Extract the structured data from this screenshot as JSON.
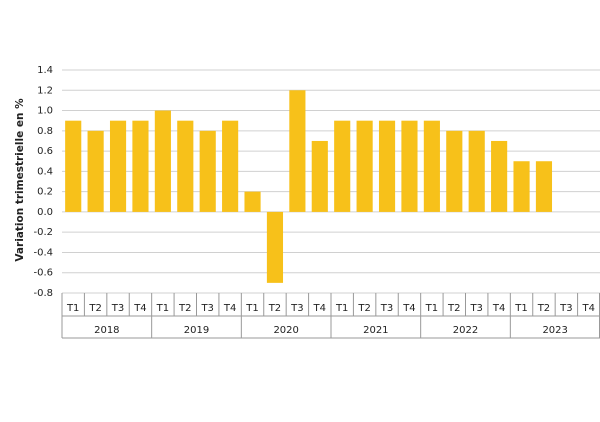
{
  "chart_data": {
    "type": "bar",
    "y_label": "Variation trimestrielle en %",
    "categories": [
      "T1",
      "T2",
      "T3",
      "T4",
      "T1",
      "T2",
      "T3",
      "T4",
      "T1",
      "T2",
      "T3",
      "T4",
      "T1",
      "T2",
      "T3",
      "T4",
      "T1",
      "T2",
      "T3",
      "T4",
      "T1",
      "T2",
      "T3",
      "T4"
    ],
    "groups": [
      "2018",
      "2019",
      "2020",
      "2021",
      "2022",
      "2023"
    ],
    "values": [
      0.9,
      0.8,
      0.9,
      0.9,
      1.0,
      0.9,
      0.8,
      0.9,
      0.2,
      -0.7,
      1.2,
      0.7,
      0.9,
      0.9,
      0.9,
      0.9,
      0.9,
      0.8,
      0.8,
      0.7,
      0.5,
      0.5,
      null,
      null
    ],
    "color": "#f7c11a",
    "ylim": [
      -0.8,
      1.4
    ],
    "yticks": [
      1.4,
      1.2,
      {
        "value": 1,
        "label": "1.0"
      },
      0.8,
      0.6,
      0.4,
      0.2,
      {
        "value": 0,
        "label": "0.0"
      },
      -0.2,
      -0.4,
      -0.6,
      -0.8
    ],
    "grid": true
  }
}
